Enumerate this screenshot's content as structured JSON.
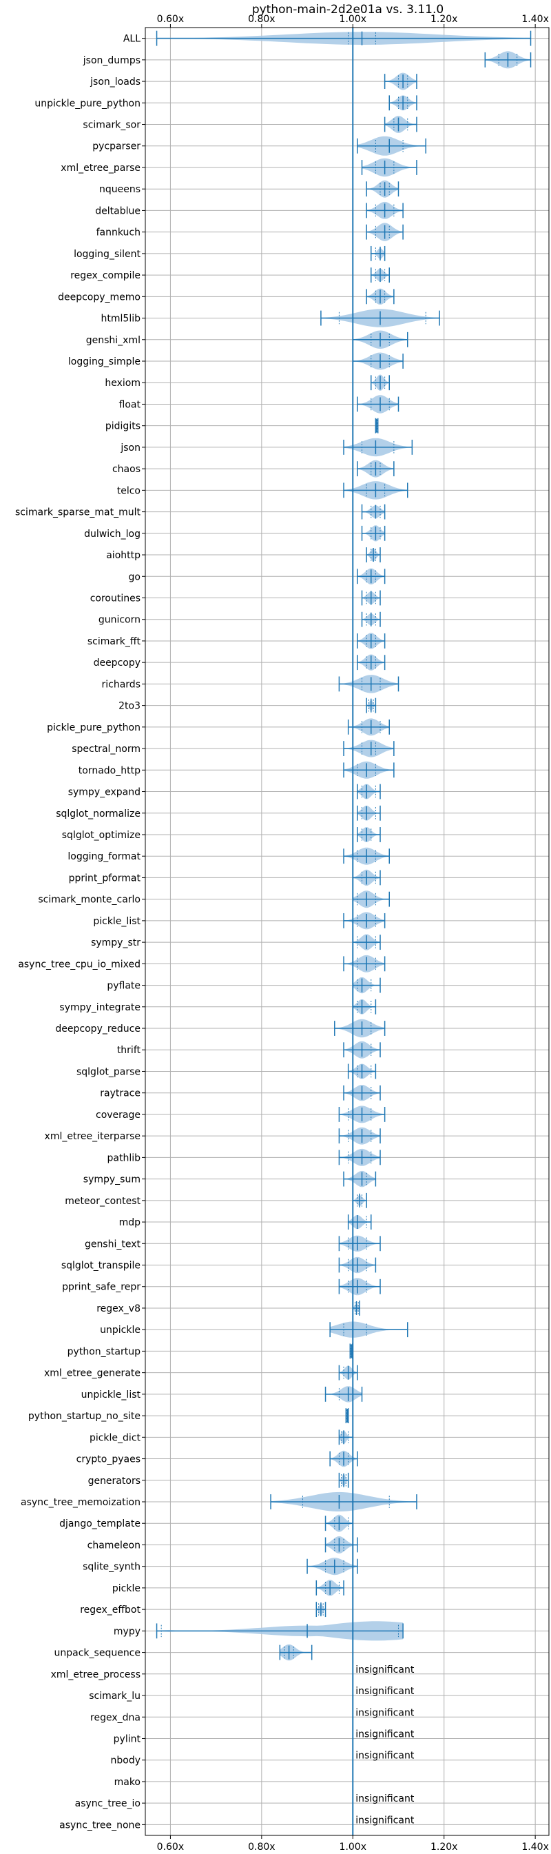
{
  "chart_data": {
    "type": "violin",
    "orientation": "horizontal",
    "title": "python-main-2d2e01a vs. 3.11.0",
    "xlabel": "",
    "ylabel": "",
    "xlim": [
      0.545,
      1.43
    ],
    "xticks": [
      0.6,
      0.8,
      1.0,
      1.2,
      1.4
    ],
    "xtick_labels": [
      "0.60x",
      "0.80x",
      "1.00x",
      "1.20x",
      "1.40x"
    ],
    "reference_line": 1.0,
    "grid": true,
    "colors": {
      "line": "#1f77b4",
      "fill": "#a6c8e5",
      "grid": "#b0b0b0"
    },
    "insignificant_label": "insignificant",
    "benchmarks": [
      {
        "name": "ALL",
        "min": 0.57,
        "max": 1.39,
        "median": 1.02,
        "q1": 0.99,
        "q3": 1.05,
        "peak": 1.02,
        "width": 0.6
      },
      {
        "name": "json_dumps",
        "min": 1.29,
        "max": 1.39,
        "median": 1.34,
        "q1": 1.32,
        "q3": 1.36,
        "peak": 1.34,
        "width": 0.8
      },
      {
        "name": "json_loads",
        "min": 1.07,
        "max": 1.14,
        "median": 1.11,
        "q1": 1.1,
        "q3": 1.12,
        "peak": 1.11,
        "width": 0.8
      },
      {
        "name": "unpickle_pure_python",
        "min": 1.08,
        "max": 1.14,
        "median": 1.11,
        "q1": 1.1,
        "q3": 1.12,
        "peak": 1.11,
        "width": 0.7
      },
      {
        "name": "scimark_sor",
        "min": 1.07,
        "max": 1.14,
        "median": 1.1,
        "q1": 1.09,
        "q3": 1.12,
        "peak": 1.1,
        "width": 0.8
      },
      {
        "name": "pycparser",
        "min": 1.01,
        "max": 1.16,
        "median": 1.08,
        "q1": 1.05,
        "q3": 1.11,
        "peak": 1.07,
        "width": 0.9
      },
      {
        "name": "xml_etree_parse",
        "min": 1.02,
        "max": 1.14,
        "median": 1.07,
        "q1": 1.05,
        "q3": 1.09,
        "peak": 1.07,
        "width": 0.85
      },
      {
        "name": "nqueens",
        "min": 1.03,
        "max": 1.1,
        "median": 1.07,
        "q1": 1.06,
        "q3": 1.08,
        "peak": 1.07,
        "width": 0.8
      },
      {
        "name": "deltablue",
        "min": 1.03,
        "max": 1.11,
        "median": 1.07,
        "q1": 1.05,
        "q3": 1.09,
        "peak": 1.07,
        "width": 0.8
      },
      {
        "name": "fannkuch",
        "min": 1.03,
        "max": 1.11,
        "median": 1.07,
        "q1": 1.05,
        "q3": 1.08,
        "peak": 1.07,
        "width": 0.85
      },
      {
        "name": "logging_silent",
        "min": 1.04,
        "max": 1.07,
        "median": 1.06,
        "q1": 1.05,
        "q3": 1.06,
        "peak": 1.06,
        "width": 0.5
      },
      {
        "name": "regex_compile",
        "min": 1.04,
        "max": 1.08,
        "median": 1.06,
        "q1": 1.05,
        "q3": 1.07,
        "peak": 1.06,
        "width": 0.6
      },
      {
        "name": "deepcopy_memo",
        "min": 1.03,
        "max": 1.09,
        "median": 1.06,
        "q1": 1.05,
        "q3": 1.07,
        "peak": 1.06,
        "width": 0.75
      },
      {
        "name": "html5lib",
        "min": 0.93,
        "max": 1.19,
        "median": 1.06,
        "q1": 0.97,
        "q3": 1.16,
        "peak": 1.06,
        "width": 0.85
      },
      {
        "name": "genshi_xml",
        "min": 1.0,
        "max": 1.12,
        "median": 1.06,
        "q1": 1.04,
        "q3": 1.08,
        "peak": 1.06,
        "width": 0.85
      },
      {
        "name": "logging_simple",
        "min": 1.0,
        "max": 1.11,
        "median": 1.06,
        "q1": 1.04,
        "q3": 1.08,
        "peak": 1.06,
        "width": 0.8
      },
      {
        "name": "hexiom",
        "min": 1.04,
        "max": 1.08,
        "median": 1.06,
        "q1": 1.05,
        "q3": 1.07,
        "peak": 1.06,
        "width": 0.75
      },
      {
        "name": "float",
        "min": 1.01,
        "max": 1.1,
        "median": 1.06,
        "q1": 1.04,
        "q3": 1.08,
        "peak": 1.06,
        "width": 0.85
      },
      {
        "name": "pidigits",
        "min": 1.05,
        "max": 1.055,
        "median": 1.052,
        "q1": 1.051,
        "q3": 1.054,
        "peak": 1.052,
        "width": 0.4
      },
      {
        "name": "json",
        "min": 0.98,
        "max": 1.13,
        "median": 1.05,
        "q1": 1.02,
        "q3": 1.09,
        "peak": 1.05,
        "width": 0.85
      },
      {
        "name": "chaos",
        "min": 1.01,
        "max": 1.09,
        "median": 1.05,
        "q1": 1.04,
        "q3": 1.06,
        "peak": 1.05,
        "width": 0.8
      },
      {
        "name": "telco",
        "min": 0.98,
        "max": 1.12,
        "median": 1.05,
        "q1": 1.03,
        "q3": 1.07,
        "peak": 1.05,
        "width": 0.85
      },
      {
        "name": "scimark_sparse_mat_mult",
        "min": 1.02,
        "max": 1.07,
        "median": 1.05,
        "q1": 1.04,
        "q3": 1.06,
        "peak": 1.05,
        "width": 0.6
      },
      {
        "name": "dulwich_log",
        "min": 1.02,
        "max": 1.07,
        "median": 1.05,
        "q1": 1.04,
        "q3": 1.06,
        "peak": 1.05,
        "width": 0.75
      },
      {
        "name": "aiohttp",
        "min": 1.03,
        "max": 1.06,
        "median": 1.045,
        "q1": 1.04,
        "q3": 1.05,
        "peak": 1.045,
        "width": 0.6
      },
      {
        "name": "go",
        "min": 1.01,
        "max": 1.07,
        "median": 1.04,
        "q1": 1.03,
        "q3": 1.05,
        "peak": 1.04,
        "width": 0.75
      },
      {
        "name": "coroutines",
        "min": 1.02,
        "max": 1.06,
        "median": 1.04,
        "q1": 1.03,
        "q3": 1.05,
        "peak": 1.04,
        "width": 0.6
      },
      {
        "name": "gunicorn",
        "min": 1.02,
        "max": 1.06,
        "median": 1.04,
        "q1": 1.03,
        "q3": 1.05,
        "peak": 1.04,
        "width": 0.55
      },
      {
        "name": "scimark_fft",
        "min": 1.01,
        "max": 1.07,
        "median": 1.04,
        "q1": 1.03,
        "q3": 1.05,
        "peak": 1.04,
        "width": 0.75
      },
      {
        "name": "deepcopy",
        "min": 1.01,
        "max": 1.07,
        "median": 1.04,
        "q1": 1.03,
        "q3": 1.05,
        "peak": 1.04,
        "width": 0.75
      },
      {
        "name": "richards",
        "min": 0.97,
        "max": 1.1,
        "median": 1.04,
        "q1": 1.02,
        "q3": 1.06,
        "peak": 1.04,
        "width": 0.85
      },
      {
        "name": "2to3",
        "min": 1.03,
        "max": 1.05,
        "median": 1.04,
        "q1": 1.035,
        "q3": 1.045,
        "peak": 1.04,
        "width": 0.5
      },
      {
        "name": "pickle_pure_python",
        "min": 0.99,
        "max": 1.08,
        "median": 1.04,
        "q1": 1.02,
        "q3": 1.06,
        "peak": 1.04,
        "width": 0.8
      },
      {
        "name": "spectral_norm",
        "min": 0.98,
        "max": 1.09,
        "median": 1.04,
        "q1": 1.02,
        "q3": 1.05,
        "peak": 1.04,
        "width": 0.8
      },
      {
        "name": "tornado_http",
        "min": 0.98,
        "max": 1.09,
        "median": 1.03,
        "q1": 1.01,
        "q3": 1.05,
        "peak": 1.03,
        "width": 0.8
      },
      {
        "name": "sympy_expand",
        "min": 1.01,
        "max": 1.06,
        "median": 1.03,
        "q1": 1.02,
        "q3": 1.05,
        "peak": 1.03,
        "width": 0.7
      },
      {
        "name": "sqlglot_normalize",
        "min": 1.01,
        "max": 1.06,
        "median": 1.03,
        "q1": 1.02,
        "q3": 1.05,
        "peak": 1.03,
        "width": 0.7
      },
      {
        "name": "sqlglot_optimize",
        "min": 1.01,
        "max": 1.06,
        "median": 1.03,
        "q1": 1.02,
        "q3": 1.04,
        "peak": 1.03,
        "width": 0.7
      },
      {
        "name": "logging_format",
        "min": 0.98,
        "max": 1.08,
        "median": 1.03,
        "q1": 1.01,
        "q3": 1.05,
        "peak": 1.03,
        "width": 0.8
      },
      {
        "name": "pprint_pformat",
        "min": 1.0,
        "max": 1.06,
        "median": 1.03,
        "q1": 1.02,
        "q3": 1.05,
        "peak": 1.03,
        "width": 0.75
      },
      {
        "name": "scimark_monte_carlo",
        "min": 1.0,
        "max": 1.08,
        "median": 1.03,
        "q1": 1.01,
        "q3": 1.05,
        "peak": 1.03,
        "width": 0.8
      },
      {
        "name": "pickle_list",
        "min": 0.98,
        "max": 1.07,
        "median": 1.03,
        "q1": 1.01,
        "q3": 1.05,
        "peak": 1.03,
        "width": 0.8
      },
      {
        "name": "sympy_str",
        "min": 1.0,
        "max": 1.06,
        "median": 1.03,
        "q1": 1.01,
        "q3": 1.05,
        "peak": 1.03,
        "width": 0.75
      },
      {
        "name": "async_tree_cpu_io_mixed",
        "min": 0.98,
        "max": 1.07,
        "median": 1.03,
        "q1": 1.01,
        "q3": 1.05,
        "peak": 1.03,
        "width": 0.8
      },
      {
        "name": "pyflate",
        "min": 1.0,
        "max": 1.06,
        "median": 1.02,
        "q1": 1.01,
        "q3": 1.04,
        "peak": 1.02,
        "width": 0.75
      },
      {
        "name": "sympy_integrate",
        "min": 1.0,
        "max": 1.05,
        "median": 1.02,
        "q1": 1.01,
        "q3": 1.04,
        "peak": 1.02,
        "width": 0.7
      },
      {
        "name": "deepcopy_reduce",
        "min": 0.96,
        "max": 1.07,
        "median": 1.02,
        "q1": 1.0,
        "q3": 1.04,
        "peak": 1.02,
        "width": 0.85
      },
      {
        "name": "thrift",
        "min": 0.98,
        "max": 1.06,
        "median": 1.02,
        "q1": 1.0,
        "q3": 1.04,
        "peak": 1.02,
        "width": 0.8
      },
      {
        "name": "sqlglot_parse",
        "min": 0.99,
        "max": 1.05,
        "median": 1.02,
        "q1": 1.01,
        "q3": 1.04,
        "peak": 1.02,
        "width": 0.7
      },
      {
        "name": "raytrace",
        "min": 0.98,
        "max": 1.06,
        "median": 1.02,
        "q1": 1.0,
        "q3": 1.04,
        "peak": 1.02,
        "width": 0.75
      },
      {
        "name": "coverage",
        "min": 0.97,
        "max": 1.07,
        "median": 1.02,
        "q1": 0.99,
        "q3": 1.04,
        "peak": 1.02,
        "width": 0.8
      },
      {
        "name": "xml_etree_iterparse",
        "min": 0.97,
        "max": 1.06,
        "median": 1.02,
        "q1": 0.99,
        "q3": 1.04,
        "peak": 1.02,
        "width": 0.8
      },
      {
        "name": "pathlib",
        "min": 0.97,
        "max": 1.06,
        "median": 1.02,
        "q1": 0.99,
        "q3": 1.04,
        "peak": 1.02,
        "width": 0.8
      },
      {
        "name": "sympy_sum",
        "min": 0.98,
        "max": 1.05,
        "median": 1.02,
        "q1": 1.0,
        "q3": 1.03,
        "peak": 1.02,
        "width": 0.75
      },
      {
        "name": "meteor_contest",
        "min": 1.0,
        "max": 1.03,
        "median": 1.015,
        "q1": 1.01,
        "q3": 1.02,
        "peak": 1.015,
        "width": 0.5
      },
      {
        "name": "mdp",
        "min": 0.99,
        "max": 1.04,
        "median": 1.01,
        "q1": 1.0,
        "q3": 1.03,
        "peak": 1.01,
        "width": 0.65
      },
      {
        "name": "genshi_text",
        "min": 0.97,
        "max": 1.06,
        "median": 1.01,
        "q1": 0.99,
        "q3": 1.03,
        "peak": 1.01,
        "width": 0.75
      },
      {
        "name": "sqlglot_transpile",
        "min": 0.97,
        "max": 1.05,
        "median": 1.01,
        "q1": 0.99,
        "q3": 1.03,
        "peak": 1.01,
        "width": 0.75
      },
      {
        "name": "pprint_safe_repr",
        "min": 0.97,
        "max": 1.06,
        "median": 1.01,
        "q1": 0.99,
        "q3": 1.03,
        "peak": 1.01,
        "width": 0.8
      },
      {
        "name": "regex_v8",
        "min": 1.0,
        "max": 1.015,
        "median": 1.008,
        "q1": 1.005,
        "q3": 1.012,
        "peak": 1.008,
        "width": 0.4
      },
      {
        "name": "unpickle",
        "min": 0.95,
        "max": 1.12,
        "median": 1.0,
        "q1": 0.98,
        "q3": 1.03,
        "peak": 1.0,
        "width": 0.75
      },
      {
        "name": "python_startup",
        "min": 0.994,
        "max": 0.999,
        "median": 0.997,
        "q1": 0.996,
        "q3": 0.998,
        "peak": 0.997,
        "width": 0.35
      },
      {
        "name": "xml_etree_generate",
        "min": 0.97,
        "max": 1.01,
        "median": 0.99,
        "q1": 0.98,
        "q3": 1.0,
        "peak": 0.99,
        "width": 0.65
      },
      {
        "name": "unpickle_list",
        "min": 0.94,
        "max": 1.02,
        "median": 0.99,
        "q1": 0.97,
        "q3": 1.0,
        "peak": 0.99,
        "width": 0.75
      },
      {
        "name": "python_startup_no_site",
        "min": 0.985,
        "max": 0.99,
        "median": 0.988,
        "q1": 0.986,
        "q3": 0.989,
        "peak": 0.988,
        "width": 0.35
      },
      {
        "name": "pickle_dict",
        "min": 0.97,
        "max": 1.0,
        "median": 0.98,
        "q1": 0.975,
        "q3": 0.99,
        "peak": 0.98,
        "width": 0.6
      },
      {
        "name": "crypto_pyaes",
        "min": 0.95,
        "max": 1.01,
        "median": 0.98,
        "q1": 0.97,
        "q3": 0.99,
        "peak": 0.98,
        "width": 0.75
      },
      {
        "name": "generators",
        "min": 0.97,
        "max": 0.99,
        "median": 0.98,
        "q1": 0.975,
        "q3": 0.985,
        "peak": 0.98,
        "width": 0.55
      },
      {
        "name": "async_tree_memoization",
        "min": 0.82,
        "max": 1.14,
        "median": 0.97,
        "q1": 0.89,
        "q3": 1.08,
        "peak": 0.97,
        "width": 0.9
      },
      {
        "name": "django_template",
        "min": 0.94,
        "max": 1.0,
        "median": 0.97,
        "q1": 0.96,
        "q3": 0.99,
        "peak": 0.97,
        "width": 0.8
      },
      {
        "name": "chameleon",
        "min": 0.94,
        "max": 1.01,
        "median": 0.97,
        "q1": 0.96,
        "q3": 0.98,
        "peak": 0.97,
        "width": 0.8
      },
      {
        "name": "sqlite_synth",
        "min": 0.9,
        "max": 1.01,
        "median": 0.96,
        "q1": 0.94,
        "q3": 0.98,
        "peak": 0.96,
        "width": 0.8
      },
      {
        "name": "pickle",
        "min": 0.92,
        "max": 0.98,
        "median": 0.95,
        "q1": 0.94,
        "q3": 0.97,
        "peak": 0.95,
        "width": 0.75
      },
      {
        "name": "regex_effbot",
        "min": 0.92,
        "max": 0.94,
        "median": 0.93,
        "q1": 0.925,
        "q3": 0.935,
        "peak": 0.93,
        "width": 0.55
      },
      {
        "name": "mypy",
        "min": 0.57,
        "max": 1.11,
        "median": 0.9,
        "q1": 0.58,
        "q3": 1.1,
        "peak": 1.05,
        "width": 0.9
      },
      {
        "name": "unpack_sequence",
        "min": 0.84,
        "max": 0.91,
        "median": 0.86,
        "q1": 0.85,
        "q3": 0.87,
        "peak": 0.86,
        "width": 0.75
      },
      {
        "name": "xml_etree_process",
        "insignificant": true
      },
      {
        "name": "scimark_lu",
        "insignificant": true
      },
      {
        "name": "regex_dna",
        "insignificant": true
      },
      {
        "name": "pylint",
        "insignificant": true
      },
      {
        "name": "nbody",
        "insignificant": true
      },
      {
        "name": "mako",
        "insignificant": false,
        "blank": true
      },
      {
        "name": "async_tree_io",
        "insignificant": true
      },
      {
        "name": "async_tree_none",
        "insignificant": true
      }
    ]
  }
}
